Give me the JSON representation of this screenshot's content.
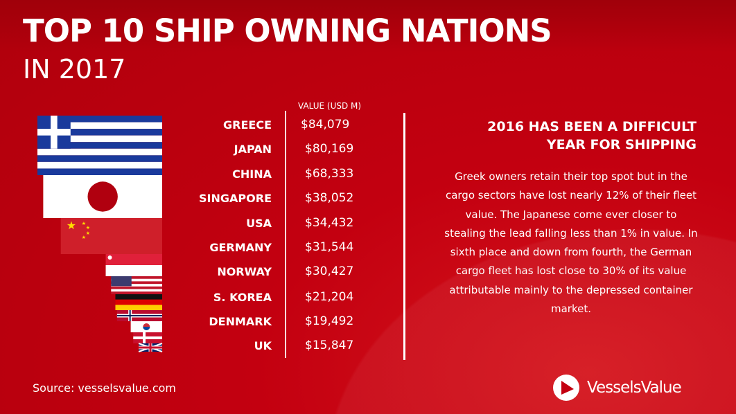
{
  "title": "TOP 10 SHIP OWNING NATIONS",
  "subtitle": "IN 2017",
  "chart_data": {
    "type": "bar",
    "title": "TOP 10 SHIP OWNING NATIONS IN 2017",
    "value_header": "VALUE (USD M)",
    "categories": [
      "GREECE",
      "JAPAN",
      "CHINA",
      "SINGAPORE",
      "USA",
      "GERMANY",
      "NORWAY",
      "S. KOREA",
      "DENMARK",
      "UK"
    ],
    "values": [
      84079,
      80169,
      68333,
      38052,
      34432,
      31544,
      30427,
      21204,
      19492,
      15847
    ],
    "value_labels": [
      "$84,079",
      "$80,169",
      "$68,333",
      "$38,052",
      "$34,432",
      "$31,544",
      "$30,427",
      "$21,204",
      "$19,492",
      "$15,847"
    ],
    "bar_style": "national flags sized by value"
  },
  "flag_icons": [
    "greece-flag",
    "japan-flag",
    "china-flag",
    "singapore-flag",
    "usa-flag",
    "germany-flag",
    "norway-flag",
    "south-korea-flag",
    "denmark-flag",
    "uk-flag"
  ],
  "commentary": {
    "heading_line1": "2016 HAS BEEN A DIFFICULT",
    "heading_line2": "YEAR FOR SHIPPING",
    "body": "Greek owners retain their top spot but in the cargo sectors have lost nearly 12% of their fleet value. The Japanese come ever closer to stealing the lead falling less than 1% in value. In sixth place and down from fourth, the German cargo fleet has lost close to 30% of its value attributable mainly to the depressed container market."
  },
  "source": "Source: vesselsvalue.com",
  "logo": "VesselsValue",
  "colors": {
    "background": "#c30010",
    "text": "#ffffff"
  }
}
